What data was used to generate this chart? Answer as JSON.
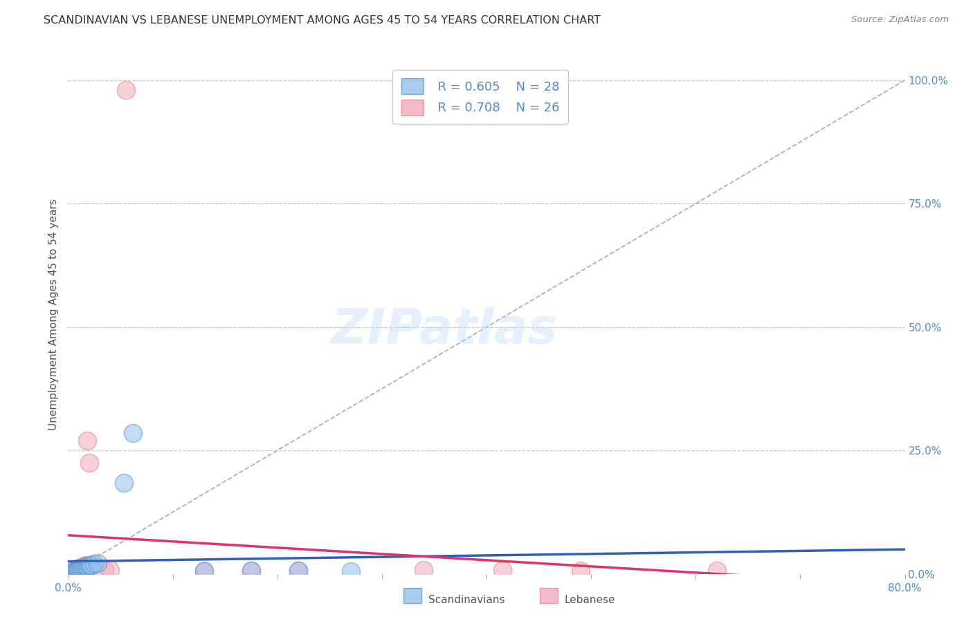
{
  "title": "SCANDINAVIAN VS LEBANESE UNEMPLOYMENT AMONG AGES 45 TO 54 YEARS CORRELATION CHART",
  "source": "Source: ZipAtlas.com",
  "ylabel": "Unemployment Among Ages 45 to 54 years",
  "xlim": [
    0.0,
    0.8
  ],
  "ylim": [
    0.0,
    1.05
  ],
  "yticks": [
    0.0,
    0.25,
    0.5,
    0.75,
    1.0
  ],
  "ytick_labels": [
    "0.0%",
    "25.0%",
    "50.0%",
    "75.0%",
    "100.0%"
  ],
  "xticks": [
    0.0,
    0.1,
    0.2,
    0.3,
    0.4,
    0.5,
    0.6,
    0.7,
    0.8
  ],
  "xtick_labels": [
    "0.0%",
    "",
    "",
    "",
    "",
    "",
    "",
    "",
    "80.0%"
  ],
  "grid_color": "#c8c8c8",
  "background_color": "#ffffff",
  "scandinavian_color": "#92C0EC",
  "scandinavian_edge": "#6699CC",
  "lebanese_color": "#F4AABB",
  "lebanese_edge": "#DD8899",
  "trend_scand_color": "#3060BB",
  "trend_leb_color": "#E03366",
  "diagonal_color": "#b0b0b0",
  "legend_R_scand": "R = 0.605",
  "legend_N_scand": "N = 28",
  "legend_R_leb": "R = 0.708",
  "legend_N_leb": "N = 26",
  "watermark": "ZIPatlas",
  "tick_color": "#5588CC",
  "title_color": "#333333",
  "source_color": "#888888",
  "ylabel_color": "#555555",
  "bottom_legend_color": "#555555",
  "scand_x": [
    0.003,
    0.005,
    0.006,
    0.007,
    0.008,
    0.009,
    0.01,
    0.01,
    0.011,
    0.012,
    0.013,
    0.014,
    0.015,
    0.016,
    0.017,
    0.018,
    0.019,
    0.02,
    0.021,
    0.022,
    0.025,
    0.028,
    0.053,
    0.062,
    0.13,
    0.175,
    0.22,
    0.27
  ],
  "scand_y": [
    0.003,
    0.004,
    0.005,
    0.005,
    0.006,
    0.007,
    0.006,
    0.008,
    0.009,
    0.01,
    0.01,
    0.012,
    0.012,
    0.013,
    0.015,
    0.014,
    0.015,
    0.017,
    0.016,
    0.018,
    0.02,
    0.022,
    0.185,
    0.285,
    0.005,
    0.006,
    0.006,
    0.005
  ],
  "leb_x": [
    0.003,
    0.005,
    0.006,
    0.007,
    0.008,
    0.009,
    0.01,
    0.011,
    0.012,
    0.013,
    0.014,
    0.015,
    0.016,
    0.017,
    0.018,
    0.02,
    0.035,
    0.04,
    0.055,
    0.13,
    0.175,
    0.22,
    0.34,
    0.415,
    0.49,
    0.62
  ],
  "leb_y": [
    0.004,
    0.005,
    0.006,
    0.007,
    0.008,
    0.01,
    0.008,
    0.012,
    0.012,
    0.014,
    0.015,
    0.015,
    0.016,
    0.018,
    0.27,
    0.225,
    0.008,
    0.008,
    0.98,
    0.006,
    0.007,
    0.007,
    0.008,
    0.008,
    0.007,
    0.007
  ]
}
